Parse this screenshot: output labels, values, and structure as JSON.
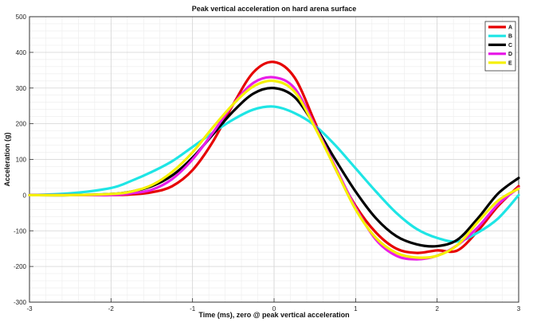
{
  "chart_data": {
    "type": "line",
    "title": "Peak vertical acceleration on hard arena surface",
    "xlabel": "Time (ms), zero @ peak vertical acceleration",
    "ylabel": "Acceleration (g)",
    "xlim": [
      -3,
      3
    ],
    "ylim": [
      -300,
      500
    ],
    "xticks": [
      -3,
      -2,
      -1,
      0,
      1,
      2,
      3
    ],
    "yticks": [
      -300,
      -200,
      -100,
      0,
      100,
      200,
      300,
      400,
      500
    ],
    "grid": "on (major and minor)",
    "legend_position": "top-right",
    "series": [
      {
        "name": "A",
        "color": "#e60000",
        "x": [
          -3,
          -2.5,
          -2,
          -1.75,
          -1.5,
          -1.25,
          -1,
          -0.75,
          -0.5,
          -0.25,
          0,
          0.25,
          0.5,
          0.75,
          1,
          1.25,
          1.5,
          1.75,
          2,
          2.25,
          2.5,
          2.75,
          3
        ],
        "y": [
          0,
          0,
          0,
          2,
          8,
          25,
          70,
          150,
          255,
          345,
          373,
          330,
          205,
          75,
          -30,
          -105,
          -150,
          -162,
          -155,
          -155,
          -100,
          -30,
          25
        ]
      },
      {
        "name": "B",
        "color": "#1ee5e5",
        "x": [
          -3,
          -2.5,
          -2,
          -1.75,
          -1.5,
          -1.25,
          -1,
          -0.75,
          -0.5,
          -0.25,
          0,
          0.25,
          0.5,
          0.75,
          1,
          1.25,
          1.5,
          1.75,
          2,
          2.25,
          2.5,
          2.75,
          3
        ],
        "y": [
          0,
          5,
          20,
          40,
          65,
          95,
          135,
          175,
          212,
          240,
          248,
          230,
          195,
          140,
          75,
          10,
          -50,
          -95,
          -120,
          -130,
          -105,
          -65,
          0
        ]
      },
      {
        "name": "C",
        "color": "#000000",
        "x": [
          -3,
          -2.5,
          -2,
          -1.75,
          -1.5,
          -1.25,
          -1,
          -0.75,
          -0.5,
          -0.25,
          0,
          0.25,
          0.5,
          0.75,
          1,
          1.25,
          1.5,
          1.75,
          2,
          2.25,
          2.5,
          2.75,
          3
        ],
        "y": [
          0,
          0,
          3,
          10,
          25,
          55,
          105,
          170,
          235,
          285,
          300,
          275,
          195,
          100,
          10,
          -65,
          -115,
          -138,
          -143,
          -125,
          -65,
          5,
          48
        ]
      },
      {
        "name": "D",
        "color": "#e81ee8",
        "x": [
          -3,
          -2.5,
          -2,
          -1.75,
          -1.5,
          -1.25,
          -1,
          -0.75,
          -0.5,
          -0.25,
          0,
          0.25,
          0.5,
          0.75,
          1,
          1.25,
          1.5,
          1.75,
          2,
          2.25,
          2.5,
          2.75,
          3
        ],
        "y": [
          0,
          0,
          0,
          5,
          15,
          45,
          100,
          175,
          255,
          315,
          330,
          300,
          195,
          80,
          -35,
          -125,
          -170,
          -180,
          -170,
          -140,
          -90,
          -25,
          20
        ]
      },
      {
        "name": "E",
        "color": "#f5f000",
        "x": [
          -3,
          -2.5,
          -2,
          -1.75,
          -1.5,
          -1.25,
          -1,
          -0.75,
          -0.5,
          -0.25,
          0,
          0.25,
          0.5,
          0.75,
          1,
          1.25,
          1.5,
          1.75,
          2,
          2.25,
          2.5,
          2.75,
          3
        ],
        "y": [
          0,
          0,
          3,
          10,
          28,
          65,
          120,
          190,
          255,
          305,
          320,
          290,
          190,
          75,
          -40,
          -120,
          -162,
          -175,
          -170,
          -140,
          -75,
          -15,
          18
        ]
      }
    ]
  }
}
